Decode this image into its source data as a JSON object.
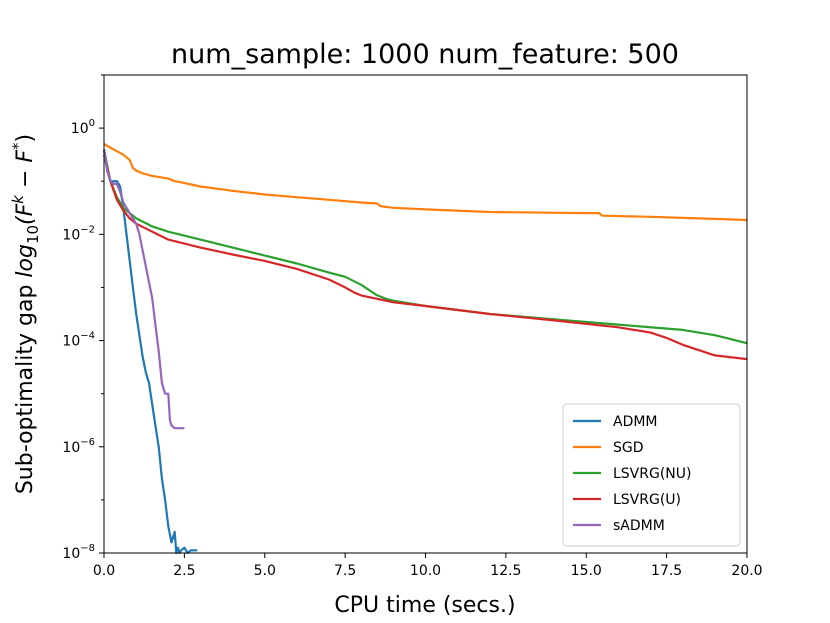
{
  "chart_data": {
    "type": "line",
    "title": "num_sample: 1000 num_feature: 500",
    "xlabel": "CPU time (secs.)",
    "ylabel_prefix": "Sub-optimality gap ",
    "ylabel_math": "log",
    "ylabel_sub": "10",
    "ylabel_open": "(F",
    "ylabel_sup_k": "k",
    "ylabel_minus": " − F",
    "ylabel_sup_star": "*",
    "ylabel_close": ")",
    "xlim": [
      0,
      20
    ],
    "ylim_log10": [
      -8,
      1
    ],
    "x_ticks": [
      0,
      2.5,
      5,
      7.5,
      10,
      12.5,
      15,
      17.5,
      20
    ],
    "x_tick_labels": [
      "0.0",
      "2.5",
      "5.0",
      "7.5",
      "10.0",
      "12.5",
      "15.0",
      "17.5",
      "20.0"
    ],
    "y_ticks_log10": [
      0,
      -2,
      -4,
      -6,
      -8
    ],
    "y_tick_base": "10",
    "y_tick_exponents": [
      "0",
      "−2",
      "−4",
      "−6",
      "−8"
    ],
    "legend_position": "lower-right",
    "series": [
      {
        "name": "ADMM",
        "color": "#1f77b4",
        "x": [
          0.0,
          0.1,
          0.2,
          0.3,
          0.4,
          0.5,
          0.6,
          0.7,
          0.8,
          0.9,
          1.0,
          1.1,
          1.2,
          1.3,
          1.4,
          1.5,
          1.6,
          1.7,
          1.8,
          1.9,
          2.0,
          2.1,
          2.2,
          2.25,
          2.3,
          2.35,
          2.4,
          2.5,
          2.6,
          2.7,
          2.8,
          2.9
        ],
        "y_log10": [
          -0.4,
          -0.8,
          -1.0,
          -1.0,
          -1.0,
          -1.1,
          -1.5,
          -2.0,
          -2.5,
          -3.0,
          -3.5,
          -3.9,
          -4.3,
          -4.6,
          -4.8,
          -5.2,
          -5.6,
          -6.0,
          -6.6,
          -7.0,
          -7.5,
          -7.8,
          -7.6,
          -8.0,
          -7.9,
          -8.0,
          -7.95,
          -7.9,
          -8.0,
          -7.95,
          -7.95,
          -7.95
        ]
      },
      {
        "name": "SGD",
        "color": "#ff7f0e",
        "x": [
          0.0,
          0.3,
          0.6,
          0.8,
          0.9,
          1.0,
          1.2,
          1.5,
          2.0,
          2.2,
          2.4,
          3.0,
          4.0,
          5.0,
          6.0,
          7.0,
          8.0,
          8.5,
          8.6,
          9.0,
          10.0,
          12.0,
          15.0,
          15.4,
          15.5,
          17.0,
          18.5,
          19.0,
          20.0
        ],
        "y_log10": [
          -0.3,
          -0.4,
          -0.5,
          -0.6,
          -0.75,
          -0.8,
          -0.85,
          -0.9,
          -0.95,
          -1.0,
          -1.02,
          -1.1,
          -1.18,
          -1.25,
          -1.3,
          -1.35,
          -1.4,
          -1.42,
          -1.47,
          -1.5,
          -1.53,
          -1.58,
          -1.6,
          -1.6,
          -1.65,
          -1.67,
          -1.7,
          -1.71,
          -1.73
        ]
      },
      {
        "name": "LSVRG(NU)",
        "color": "#2ca02c",
        "x": [
          0.0,
          0.2,
          0.4,
          0.6,
          0.8,
          1.0,
          1.5,
          2.0,
          3.0,
          4.0,
          5.0,
          6.0,
          7.0,
          7.5,
          8.0,
          8.5,
          8.8,
          9.0,
          10.0,
          12.0,
          14.0,
          16.0,
          18.0,
          19.0,
          20.0
        ],
        "y_log10": [
          -0.4,
          -1.0,
          -1.3,
          -1.5,
          -1.6,
          -1.7,
          -1.85,
          -1.95,
          -2.1,
          -2.25,
          -2.4,
          -2.55,
          -2.72,
          -2.8,
          -2.95,
          -3.15,
          -3.22,
          -3.25,
          -3.35,
          -3.5,
          -3.6,
          -3.7,
          -3.8,
          -3.9,
          -4.05
        ]
      },
      {
        "name": "LSVRG(U)",
        "color": "#d62728",
        "x": [
          0.0,
          0.2,
          0.4,
          0.6,
          0.8,
          1.0,
          1.5,
          2.0,
          3.0,
          4.0,
          5.0,
          6.0,
          7.0,
          7.5,
          7.8,
          8.0,
          9.0,
          10.0,
          12.0,
          14.0,
          16.0,
          17.0,
          17.5,
          18.0,
          19.0,
          20.0
        ],
        "y_log10": [
          -0.5,
          -1.0,
          -1.35,
          -1.55,
          -1.7,
          -1.8,
          -1.95,
          -2.1,
          -2.25,
          -2.38,
          -2.5,
          -2.65,
          -2.85,
          -3.0,
          -3.1,
          -3.15,
          -3.28,
          -3.35,
          -3.5,
          -3.62,
          -3.75,
          -3.85,
          -3.95,
          -4.08,
          -4.28,
          -4.35
        ]
      },
      {
        "name": "sADMM",
        "color": "#9467bd",
        "x": [
          0.0,
          0.1,
          0.2,
          0.3,
          0.4,
          0.5,
          0.6,
          0.8,
          1.0,
          1.1,
          1.2,
          1.3,
          1.4,
          1.5,
          1.6,
          1.7,
          1.8,
          1.9,
          2.0,
          2.05,
          2.1,
          2.2,
          2.3,
          2.4,
          2.5
        ],
        "y_log10": [
          -0.4,
          -0.8,
          -1.0,
          -1.05,
          -1.05,
          -1.2,
          -1.4,
          -1.6,
          -1.8,
          -2.0,
          -2.3,
          -2.6,
          -2.9,
          -3.2,
          -3.7,
          -4.2,
          -4.8,
          -5.0,
          -5.0,
          -5.5,
          -5.6,
          -5.65,
          -5.65,
          -5.65,
          -5.65
        ]
      }
    ]
  }
}
